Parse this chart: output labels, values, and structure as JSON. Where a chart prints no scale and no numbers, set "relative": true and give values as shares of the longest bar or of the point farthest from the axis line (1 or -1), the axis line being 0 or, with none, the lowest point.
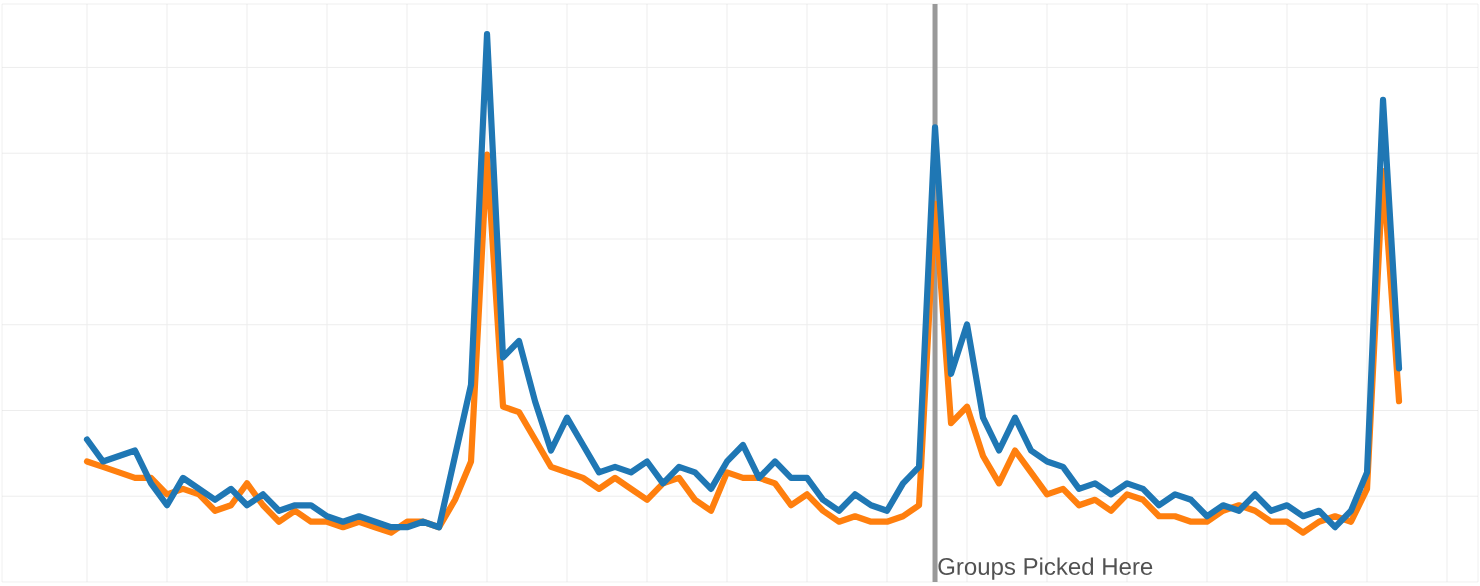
{
  "chart_data": {
    "type": "line",
    "relative": true,
    "grid": true,
    "marker": "none",
    "line_style": "solid",
    "tick_labels": false,
    "categories": [
      null,
      null,
      null,
      null,
      null,
      null,
      null,
      null,
      null,
      null,
      null,
      null,
      null,
      null,
      null,
      null,
      null,
      null,
      null,
      null,
      null,
      null,
      null,
      null,
      null,
      null,
      null,
      null,
      null,
      null,
      null,
      null,
      null,
      null,
      null,
      null,
      null,
      null,
      null,
      null,
      null,
      null,
      null,
      null,
      null,
      null,
      null,
      null,
      null,
      null,
      null,
      null,
      null,
      null,
      null,
      null,
      null,
      null,
      null,
      null,
      null,
      null,
      null,
      null,
      null,
      null,
      null,
      null,
      null,
      null,
      null,
      null,
      null,
      null,
      null,
      null,
      null,
      null,
      null,
      null,
      null,
      null,
      null
    ],
    "series": [
      {
        "color": "#ff7f0e",
        "values": [
          0.22,
          0.21,
          0.2,
          0.19,
          0.19,
          0.16,
          0.17,
          0.16,
          0.13,
          0.14,
          0.18,
          0.14,
          0.11,
          0.13,
          0.11,
          0.11,
          0.1,
          0.11,
          0.1,
          0.09,
          0.11,
          0.11,
          0.1,
          0.15,
          0.22,
          0.78,
          0.32,
          0.31,
          0.26,
          0.21,
          0.2,
          0.19,
          0.17,
          0.19,
          0.17,
          0.15,
          0.18,
          0.19,
          0.15,
          0.13,
          0.2,
          0.19,
          0.19,
          0.18,
          0.14,
          0.16,
          0.13,
          0.11,
          0.12,
          0.11,
          0.11,
          0.12,
          0.14,
          0.69,
          0.29,
          0.32,
          0.23,
          0.18,
          0.24,
          0.2,
          0.16,
          0.17,
          0.14,
          0.15,
          0.13,
          0.16,
          0.15,
          0.12,
          0.12,
          0.11,
          0.11,
          0.13,
          0.14,
          0.13,
          0.11,
          0.11,
          0.09,
          0.11,
          0.12,
          0.11,
          0.17,
          0.75,
          0.33
        ]
      },
      {
        "color": "#1f77b4",
        "values": [
          0.26,
          0.22,
          0.23,
          0.24,
          0.18,
          0.14,
          0.19,
          0.17,
          0.15,
          0.17,
          0.14,
          0.16,
          0.13,
          0.14,
          0.14,
          0.12,
          0.11,
          0.12,
          0.11,
          0.1,
          0.1,
          0.11,
          0.1,
          0.23,
          0.36,
          1.0,
          0.41,
          0.44,
          0.33,
          0.24,
          0.3,
          0.25,
          0.2,
          0.21,
          0.2,
          0.22,
          0.18,
          0.21,
          0.2,
          0.17,
          0.22,
          0.25,
          0.19,
          0.22,
          0.19,
          0.19,
          0.15,
          0.13,
          0.16,
          0.14,
          0.13,
          0.18,
          0.21,
          0.83,
          0.38,
          0.47,
          0.3,
          0.24,
          0.3,
          0.24,
          0.22,
          0.21,
          0.17,
          0.18,
          0.16,
          0.18,
          0.17,
          0.14,
          0.16,
          0.15,
          0.12,
          0.14,
          0.13,
          0.16,
          0.13,
          0.14,
          0.12,
          0.13,
          0.1,
          0.13,
          0.2,
          0.88,
          0.39
        ]
      }
    ],
    "annotations": [
      "Groups Picked Here"
    ]
  }
}
